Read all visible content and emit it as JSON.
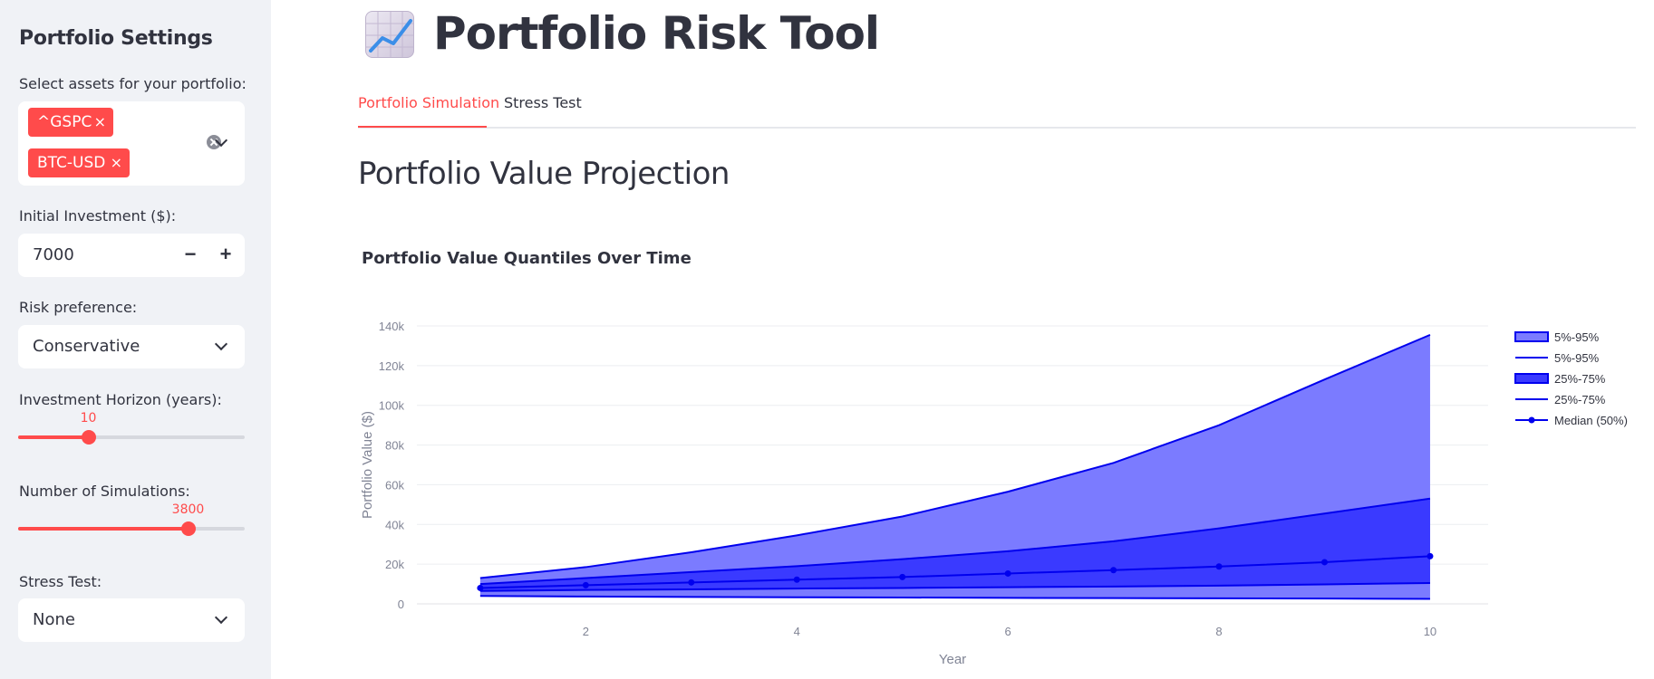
{
  "sidebar": {
    "title": "Portfolio Settings",
    "assets_label": "Select assets for your portfolio:",
    "assets": [
      "^GSPC",
      "BTC-USD"
    ],
    "chip_remove": "×",
    "initial_label": "Initial Investment ($):",
    "initial_value": "7000",
    "minus": "−",
    "plus": "+",
    "risk_label": "Risk preference:",
    "risk_value": "Conservative",
    "horizon_label": "Investment Horizon (years):",
    "horizon_value": "10",
    "horizon_fraction": 0.31,
    "sims_label": "Number of Simulations:",
    "sims_value": "3800",
    "sims_fraction": 0.75,
    "stress_label": "Stress Test:",
    "stress_value": "None"
  },
  "header": {
    "icon": "chart-increasing-icon",
    "title": "Portfolio Risk Tool"
  },
  "tabs": [
    {
      "label": "Portfolio Simulation",
      "active": true
    },
    {
      "label": "Stress Test",
      "active": false
    }
  ],
  "main": {
    "section_title": "Portfolio Value Projection"
  },
  "colors": {
    "accent": "#ff4b4b",
    "band_outer": "#7b7bff",
    "band_inner": "#3a3aff",
    "line": "#0000ee"
  },
  "chart_data": {
    "type": "area",
    "title": "Portfolio Value Quantiles Over Time",
    "xlabel": "Year",
    "ylabel": "Portfolio Value ($)",
    "x": [
      1,
      2,
      3,
      4,
      5,
      6,
      7,
      8,
      9,
      10
    ],
    "xticks": [
      2,
      4,
      6,
      8,
      10
    ],
    "yticks": [
      0,
      20000,
      40000,
      60000,
      80000,
      100000,
      120000,
      140000
    ],
    "ytick_labels": [
      "0",
      "20k",
      "40k",
      "60k",
      "80k",
      "100k",
      "120k",
      "140k"
    ],
    "xlim": [
      0.4,
      10.55
    ],
    "ylim": [
      0,
      140000
    ],
    "grid": true,
    "legend_position": "right",
    "legend": [
      "5%-95%",
      "5%-95%",
      "25%-75%",
      "25%-75%",
      "Median (50%)"
    ],
    "series": [
      {
        "name": "5%",
        "values": [
          4000,
          3700,
          3500,
          3300,
          3200,
          3000,
          2900,
          2800,
          2700,
          2500
        ]
      },
      {
        "name": "95%",
        "values": [
          13000,
          18500,
          26000,
          34500,
          44000,
          56500,
          71000,
          90000,
          113000,
          135500
        ]
      },
      {
        "name": "25%",
        "values": [
          6500,
          7000,
          7300,
          7700,
          8000,
          8400,
          8700,
          9200,
          9800,
          10500
        ]
      },
      {
        "name": "75%",
        "values": [
          10000,
          13000,
          16000,
          19000,
          22500,
          26500,
          31500,
          38000,
          45500,
          53000
        ]
      },
      {
        "name": "Median (50%)",
        "values": [
          8000,
          9400,
          10800,
          12200,
          13500,
          15300,
          17000,
          18800,
          21000,
          24000
        ]
      }
    ]
  }
}
